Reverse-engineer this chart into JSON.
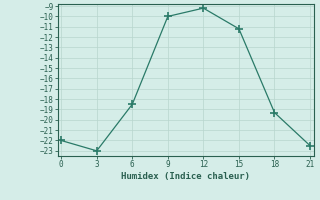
{
  "xlabel": "Humidex (Indice chaleur)",
  "x": [
    0,
    3,
    6,
    9,
    12,
    15,
    18,
    21
  ],
  "y": [
    -22,
    -23,
    -18.5,
    -10,
    -9.2,
    -11.2,
    -19.3,
    -22.5
  ],
  "line_color": "#2a7a68",
  "bg_color": "#d5ede8",
  "grid_color": "#b8d5ce",
  "xlim": [
    -0.3,
    21.3
  ],
  "ylim": [
    -23.5,
    -8.8
  ],
  "xticks": [
    0,
    3,
    6,
    9,
    12,
    15,
    18,
    21
  ],
  "yticks": [
    -9,
    -10,
    -11,
    -12,
    -13,
    -14,
    -15,
    -16,
    -17,
    -18,
    -19,
    -20,
    -21,
    -22,
    -23
  ],
  "marker": "+",
  "marker_size": 6,
  "font_color": "#2a6050",
  "tick_fontsize": 5.5,
  "xlabel_fontsize": 6.5
}
